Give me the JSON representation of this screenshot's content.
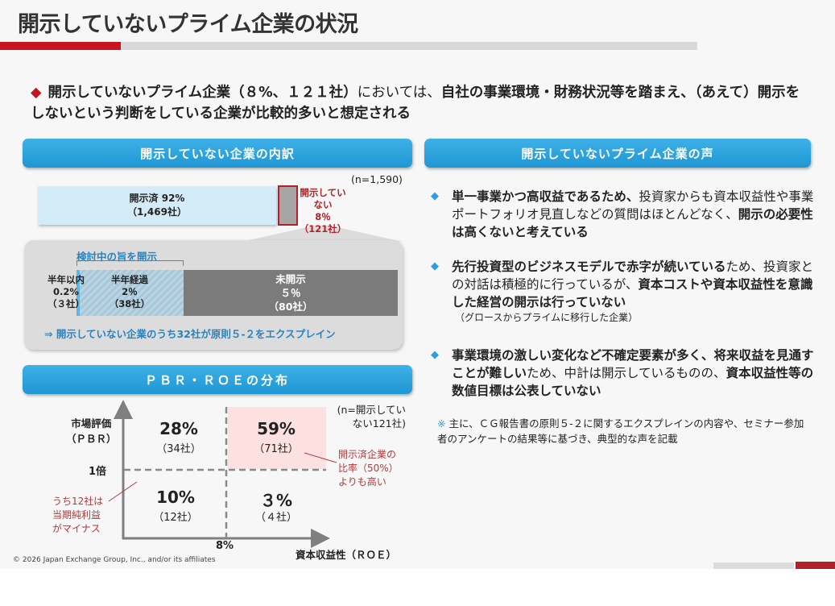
{
  "title": "開示していないプライム企業の状況",
  "headline": {
    "bold1": "開示していないプライム企業（８%、１２１社）",
    "normal": "においては、",
    "bold2": "自社の事業環境・財務状況等を踏まえ、（あえて）開示をしないという判断をしている企業が比較的多いと想定される"
  },
  "left": {
    "header": "開示していない企業の内訳",
    "n": "(n=1,590)",
    "disclosed": {
      "label": "開示済 92%",
      "count": "（1,469社）",
      "percent": 92
    },
    "not_disclosed": {
      "label": "開示していない",
      "pct": "8％",
      "count": "（121社）",
      "percent": 8
    },
    "bracket_label": "検討中の旨を開示",
    "segments": [
      {
        "label": "半年以内",
        "pct": "0.2%",
        "count": "（３社）",
        "percent": 0.2
      },
      {
        "label": "半年経過",
        "pct": "2％",
        "count": "（38社）",
        "percent": 2
      },
      {
        "label": "未開示",
        "pct": "５％",
        "count": "（80社）",
        "percent": 5
      }
    ],
    "explain": "⇒ 開示していない企業のうち32社が原則５-２をエクスプレイン"
  },
  "pbr": {
    "header": "ＰＢＲ・ＲＯＥの分布",
    "n": "(n=開示してい\nない121社)",
    "y_label": "市場評価\n（ＰＢＲ）",
    "y_threshold": "1倍",
    "x_threshold": "8%",
    "x_label": "資本収益性（ＲＯＥ）",
    "quadrants": [
      {
        "pct": "28%",
        "count": "（34社）"
      },
      {
        "pct": "59%",
        "count": "（71社）"
      },
      {
        "pct": "10%",
        "count": "（12社）"
      },
      {
        "pct": "３%",
        "count": "（４社）"
      }
    ],
    "note_right": "開示済企業の\n比率（50%）\nよりも高い",
    "note_left": "うち12社は\n当期純利益\nがマイナス",
    "highlight_color": "#fde0e0"
  },
  "right": {
    "header": "開示していないプライム企業の声",
    "items": [
      {
        "b1": "単一事業かつ高収益であるため、",
        "n1": "投資家からも資本収益性や事業ポートフォリオ見直しなどの質問はほとんどなく、",
        "b2": "開示の必要性は高くないと考えている",
        "sub": ""
      },
      {
        "b1": "先行投資型のビジネスモデルで赤字が続いている",
        "n1": "ため、投資家との対話は積極的に行っているが、",
        "b2": "資本コストや資本収益性を意識した経営の開示は行っていない",
        "sub": "（グロースからプライムに移行した企業）"
      },
      {
        "b1": "事業環境の激しい変化など不確定要素が多く、将来収益を見通すことが難しい",
        "n1": "ため、中計は開示しているものの、",
        "b2": "資本収益性等の数値目標は公表していない",
        "sub": ""
      }
    ],
    "note_mark": "※",
    "note": "主に、ＣＧ報告書の原則５-２に関するエクスプレインの内容や、セミナー参加者のアンケートの結果等に基づき、典型的な声を記載"
  },
  "copyright": "© 2026 Japan Exchange Group, Inc., and/or its affiliates"
}
